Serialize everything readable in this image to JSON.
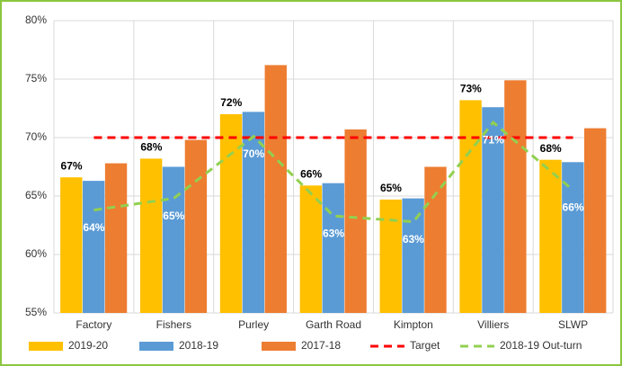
{
  "chart_data": {
    "type": "bar",
    "categories": [
      "Factory",
      "Fishers",
      "Purley",
      "Garth Road",
      "Kimpton",
      "Villiers",
      "SLWP"
    ],
    "ylim": [
      55,
      80
    ],
    "yticks": [
      {
        "value": 55,
        "label": "55%"
      },
      {
        "value": 60,
        "label": "60%"
      },
      {
        "value": 65,
        "label": "65%"
      },
      {
        "value": 70,
        "label": "70%"
      },
      {
        "value": 75,
        "label": "75%"
      },
      {
        "value": 80,
        "label": "80%"
      }
    ],
    "grid": true,
    "legend": "bottom",
    "series": [
      {
        "name": "2019-20",
        "type": "bar",
        "color": "#FFC000",
        "values": [
          66.6,
          68.2,
          72.0,
          65.9,
          64.7,
          73.2,
          68.1
        ],
        "value_labels": [
          "67%",
          "68%",
          "72%",
          "66%",
          "65%",
          "73%",
          "68%"
        ]
      },
      {
        "name": "2018-19",
        "type": "bar",
        "color": "#5B9BD5",
        "values": [
          66.3,
          67.5,
          72.2,
          66.1,
          64.8,
          72.6,
          67.9
        ]
      },
      {
        "name": "2017-18",
        "type": "bar",
        "color": "#ED7D31",
        "values": [
          67.8,
          69.8,
          76.2,
          70.7,
          67.5,
          74.9,
          70.8
        ]
      },
      {
        "name": "Target",
        "type": "line",
        "dashed": true,
        "color": "#FF0000",
        "values": [
          70,
          70,
          70,
          70,
          70,
          70,
          70
        ]
      },
      {
        "name": "2018-19 Out-turn",
        "type": "line",
        "dashed": true,
        "color": "#92D050",
        "values": [
          63.8,
          64.8,
          70.1,
          63.3,
          62.8,
          71.3,
          65.5
        ],
        "value_labels": [
          "64%",
          "65%",
          "70%",
          "63%",
          "63%",
          "71%",
          "66%"
        ]
      }
    ]
  }
}
